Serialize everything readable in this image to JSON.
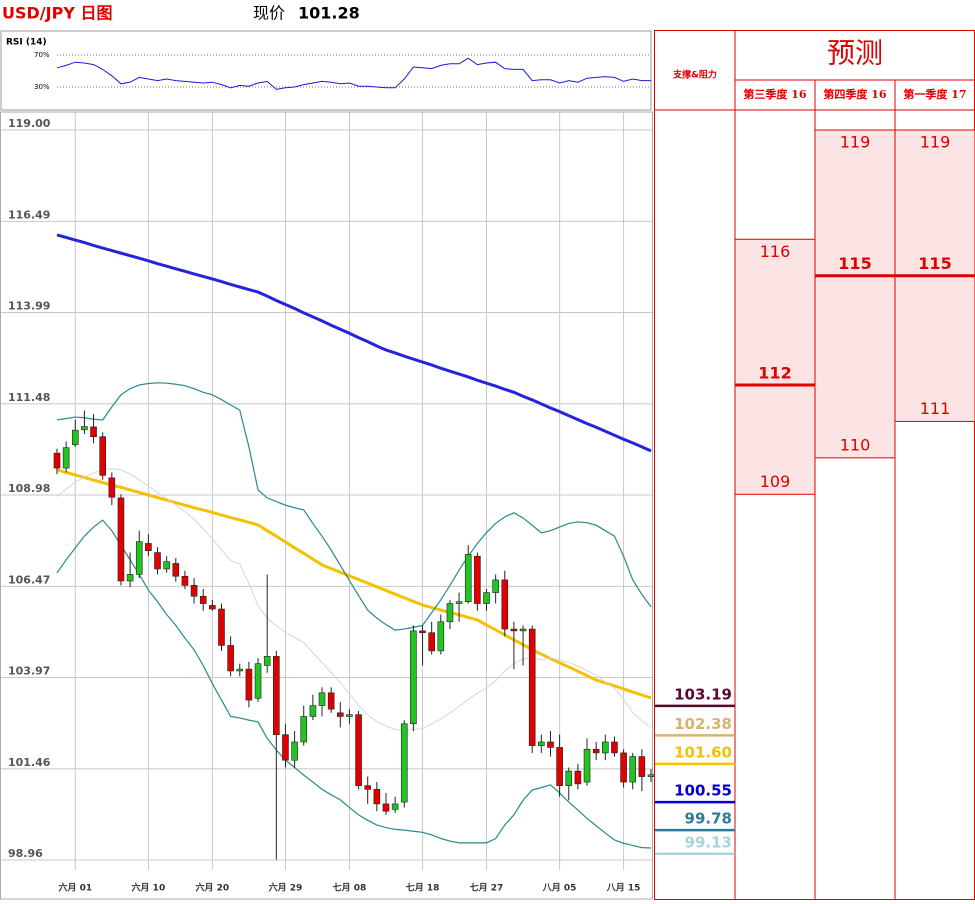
{
  "header": {
    "title": "USD/JPY 日图",
    "price_label": "现价",
    "price": 101.28
  },
  "chart_data": [
    {
      "type": "rsi",
      "title": "RSI (14)",
      "ylim": [
        0,
        100
      ],
      "yticks": [
        {
          "value": 70,
          "label": "70%"
        },
        {
          "value": 30,
          "label": "30%"
        }
      ],
      "color": "#1a1adc",
      "values": [
        54,
        57,
        61,
        60,
        58,
        52,
        44,
        34,
        36,
        42,
        40,
        38,
        40,
        38,
        37,
        36,
        35,
        36,
        33,
        29,
        32,
        31,
        35,
        37,
        27,
        29,
        30,
        33,
        35,
        37,
        36,
        34,
        35,
        31,
        31,
        30,
        29,
        29,
        40,
        55,
        54,
        53,
        57,
        59,
        59,
        66,
        58,
        60,
        61,
        53,
        52,
        52,
        38,
        39,
        39,
        35,
        38,
        36,
        41,
        42,
        43,
        42,
        37,
        40,
        38,
        38
      ]
    },
    {
      "type": "candlestick",
      "categories": [
        null,
        null,
        "六月 01",
        null,
        null,
        null,
        null,
        null,
        null,
        null,
        "六月 10",
        null,
        null,
        null,
        null,
        null,
        null,
        "六月 20",
        null,
        null,
        null,
        null,
        null,
        null,
        null,
        "六月 29",
        null,
        null,
        null,
        null,
        null,
        null,
        "七月 08",
        null,
        null,
        null,
        null,
        null,
        null,
        null,
        "七月 18",
        null,
        null,
        null,
        null,
        null,
        null,
        "七月 27",
        null,
        null,
        null,
        null,
        null,
        null,
        null,
        "八月 05",
        null,
        null,
        null,
        null,
        null,
        null,
        "八月 15",
        null,
        null,
        null
      ],
      "open": [
        110.13,
        109.72,
        110.36,
        110.77,
        110.85,
        110.58,
        109.45,
        108.9,
        106.62,
        106.8,
        107.65,
        107.4,
        106.95,
        107.1,
        106.75,
        106.5,
        106.2,
        105.95,
        105.85,
        104.85,
        104.15,
        104.2,
        103.4,
        104.3,
        104.55,
        102.4,
        101.7,
        102.2,
        102.9,
        103.2,
        103.55,
        103,
        102.9,
        102.95,
        101,
        100.9,
        100.5,
        100.35,
        100.55,
        102.7,
        105.25,
        105.2,
        104.7,
        105.5,
        106,
        106.05,
        107.3,
        106,
        106.3,
        106.65,
        105.3,
        105.25,
        105.3,
        102.1,
        102.2,
        102.05,
        101,
        101.4,
        101.1,
        102,
        101.9,
        102.2,
        101.9,
        101.1,
        101.8,
        101.25
      ],
      "high": [
        110.25,
        110.45,
        111.05,
        111.3,
        111.2,
        110.7,
        109.6,
        109,
        107.4,
        108,
        107.9,
        107.55,
        107.3,
        107.25,
        106.9,
        106.7,
        106.4,
        106.1,
        106,
        105.1,
        104.35,
        104.4,
        104.5,
        106.8,
        104.7,
        102.7,
        102.5,
        103.2,
        103.5,
        103.7,
        103.7,
        103.3,
        103.1,
        103.05,
        101.25,
        101.1,
        100.8,
        100.7,
        102.8,
        105.4,
        105.4,
        105.5,
        105.7,
        106.1,
        106.3,
        107.6,
        107.4,
        106.4,
        106.8,
        106.9,
        105.5,
        105.4,
        105.4,
        102.4,
        102.5,
        102.4,
        101.5,
        101.6,
        102.3,
        102.2,
        102.4,
        102.35,
        102,
        101.9,
        102,
        101.45
      ],
      "low": [
        109.55,
        109.6,
        110.3,
        110.65,
        110.4,
        109.4,
        108.7,
        106.5,
        106.45,
        106.7,
        107.3,
        106.8,
        106.85,
        106.6,
        106.4,
        106,
        105.8,
        105.8,
        104.7,
        104,
        104,
        103.15,
        103.3,
        104.1,
        98.97,
        101.5,
        101.5,
        102.1,
        102.8,
        102.9,
        103,
        102.6,
        102.7,
        100.9,
        100.5,
        100.3,
        100.2,
        100.25,
        100.4,
        102.5,
        104.3,
        104.6,
        104.6,
        105.3,
        105.5,
        106,
        105.8,
        105.8,
        106,
        105.1,
        104.2,
        104.3,
        101.9,
        101.9,
        101.8,
        100.7,
        100.6,
        100.9,
        101,
        101.7,
        101.7,
        101.8,
        100.95,
        100.9,
        100.85,
        101.1
      ],
      "close": [
        109.72,
        110.28,
        110.76,
        110.86,
        110.58,
        109.52,
        108.92,
        106.62,
        106.8,
        107.7,
        107.45,
        106.95,
        107.15,
        106.75,
        106.5,
        106.2,
        106,
        105.85,
        104.85,
        104.15,
        104.2,
        103.35,
        104.35,
        104.55,
        102.4,
        101.7,
        102.2,
        102.9,
        103.2,
        103.55,
        103.1,
        102.9,
        102.95,
        101,
        100.9,
        100.5,
        100.3,
        100.5,
        102.7,
        105.25,
        105.2,
        104.7,
        105.5,
        106,
        106.05,
        107.35,
        106,
        106.3,
        106.65,
        105.3,
        105.25,
        105.3,
        102.1,
        102.2,
        102.05,
        101,
        101.4,
        101.05,
        102,
        101.9,
        102.2,
        101.9,
        101.1,
        101.8,
        101.25,
        101.3
      ],
      "up_color": "#22c322",
      "down_color": "#e00000",
      "ylim": [
        98.96,
        119
      ],
      "yticks": [
        {
          "value": 119,
          "label": "119.00"
        },
        116.49,
        113.99,
        111.48,
        108.98,
        106.47,
        103.97,
        101.46,
        98.96
      ],
      "grid": true,
      "lines": [
        {
          "color": "#2424dd",
          "width": 3,
          "values": [
            116.12,
            116.05,
            115.98,
            115.91,
            115.83,
            115.76,
            115.69,
            115.62,
            115.55,
            115.48,
            115.41,
            115.33,
            115.26,
            115.19,
            115.12,
            115.05,
            114.98,
            114.91,
            114.84,
            114.76,
            114.69,
            114.62,
            114.55,
            114.44,
            114.32,
            114.21,
            114.1,
            113.98,
            113.87,
            113.76,
            113.64,
            113.53,
            113.42,
            113.3,
            113.19,
            113.07,
            112.96,
            112.88,
            112.79,
            112.71,
            112.63,
            112.55,
            112.46,
            112.38,
            112.3,
            112.22,
            112.13,
            112.05,
            111.97,
            111.88,
            111.8,
            111.69,
            111.59,
            111.48,
            111.37,
            111.27,
            111.16,
            111.05,
            110.94,
            110.84,
            110.73,
            110.62,
            110.51,
            110.41,
            110.3,
            110.19
          ]
        },
        {
          "color": "#f5c000",
          "width": 3,
          "values": [
            109.67,
            109.6,
            109.53,
            109.46,
            109.39,
            109.32,
            109.25,
            109.19,
            109.12,
            109.05,
            108.98,
            108.91,
            108.84,
            108.77,
            108.7,
            108.63,
            108.57,
            108.5,
            108.43,
            108.36,
            108.3,
            108.23,
            108.16,
            108,
            107.85,
            107.69,
            107.53,
            107.38,
            107.22,
            107.06,
            106.96,
            106.86,
            106.76,
            106.66,
            106.56,
            106.46,
            106.36,
            106.26,
            106.16,
            106.06,
            105.96,
            105.89,
            105.82,
            105.76,
            105.69,
            105.62,
            105.55,
            105.41,
            105.28,
            105.14,
            105,
            104.87,
            104.73,
            104.61,
            104.49,
            104.37,
            104.26,
            104.14,
            104.02,
            103.9,
            103.82,
            103.74,
            103.66,
            103.57,
            103.49,
            103.41
          ]
        },
        {
          "color": "#2a8a8a",
          "width": 1.2,
          "values": [
            111.04,
            111.08,
            111.12,
            111.1,
            111.06,
            111.04,
            111.4,
            111.73,
            111.9,
            112,
            112.04,
            112.06,
            112.05,
            112.02,
            111.98,
            111.9,
            111.8,
            111.73,
            111.6,
            111.45,
            111.31,
            110.3,
            109.12,
            108.9,
            108.8,
            108.7,
            108.63,
            108.57,
            108.2,
            107.85,
            107.47,
            107.05,
            106.63,
            106.22,
            105.82,
            105.6,
            105.42,
            105.27,
            105.3,
            105.35,
            105.4,
            105.75,
            106.1,
            106.5,
            106.92,
            107.3,
            107.65,
            107.95,
            108.2,
            108.38,
            108.49,
            108.35,
            108.15,
            107.94,
            108,
            108.1,
            108.2,
            108.24,
            108.22,
            108.15,
            108,
            107.85,
            107.3,
            106.65,
            106.25,
            105.91
          ]
        },
        {
          "color": "#2a8a8a",
          "width": 1.2,
          "values": [
            106.84,
            107.2,
            107.53,
            107.85,
            108.1,
            108.29,
            108,
            107.6,
            107.2,
            106.8,
            106.37,
            106.05,
            105.7,
            105.4,
            105.05,
            104.73,
            104.3,
            103.8,
            103.35,
            102.9,
            102.86,
            102.8,
            102.75,
            102.3,
            101.98,
            101.7,
            101.5,
            101.29,
            101.1,
            100.9,
            100.75,
            100.61,
            100.4,
            100.2,
            100.05,
            99.92,
            99.85,
            99.8,
            99.78,
            99.75,
            99.72,
            99.65,
            99.55,
            99.48,
            99.43,
            99.43,
            99.43,
            99.43,
            99.55,
            99.92,
            100.2,
            100.6,
            100.88,
            100.95,
            101.02,
            100.8,
            100.55,
            100.33,
            100.1,
            99.9,
            99.7,
            99.51,
            99.42,
            99.36,
            99.3,
            99.29
          ]
        },
        {
          "color": "#d6d6d6",
          "width": 1,
          "values": [
            108.94,
            109.14,
            109.33,
            109.48,
            109.58,
            109.67,
            109.7,
            109.67,
            109.55,
            109.4,
            109.22,
            109.05,
            108.88,
            108.71,
            108.52,
            108.32,
            108.05,
            107.77,
            107.48,
            107.18,
            107.09,
            106.55,
            105.94,
            105.6,
            105.39,
            105.2,
            105.07,
            104.93,
            104.65,
            104.38,
            104.11,
            103.83,
            103.52,
            103.21,
            102.94,
            102.76,
            102.64,
            102.54,
            102.54,
            102.55,
            102.56,
            102.7,
            102.83,
            102.99,
            103.18,
            103.37,
            103.54,
            103.69,
            103.88,
            104.15,
            104.35,
            104.48,
            104.52,
            104.45,
            104.51,
            104.45,
            104.38,
            104.29,
            104.16,
            104.03,
            103.85,
            103.68,
            103.36,
            103.01,
            102.78,
            102.6
          ]
        }
      ]
    }
  ],
  "forecast": {
    "title": "预测",
    "levels_title": "支撑&阻力",
    "quarters": [
      {
        "label": "第三季度 16",
        "high": 116,
        "mid": 112,
        "low": 109
      },
      {
        "label": "第四季度 16",
        "high": 119,
        "mid": 115,
        "low": 110
      },
      {
        "label": "第一季度 17",
        "high": 119,
        "mid": 115,
        "low": 111
      }
    ],
    "levels": [
      {
        "value": 103.19,
        "color": "#5a0a2e"
      },
      {
        "value": 102.38,
        "color": "#d4b373"
      },
      {
        "value": 101.6,
        "label": "101.60",
        "color": "#f2c200"
      },
      {
        "value": 100.55,
        "color": "#0000d0"
      },
      {
        "value": 99.78,
        "color": "#2e7a9a"
      },
      {
        "value": 99.13,
        "color": "#a9d3dd"
      }
    ]
  }
}
